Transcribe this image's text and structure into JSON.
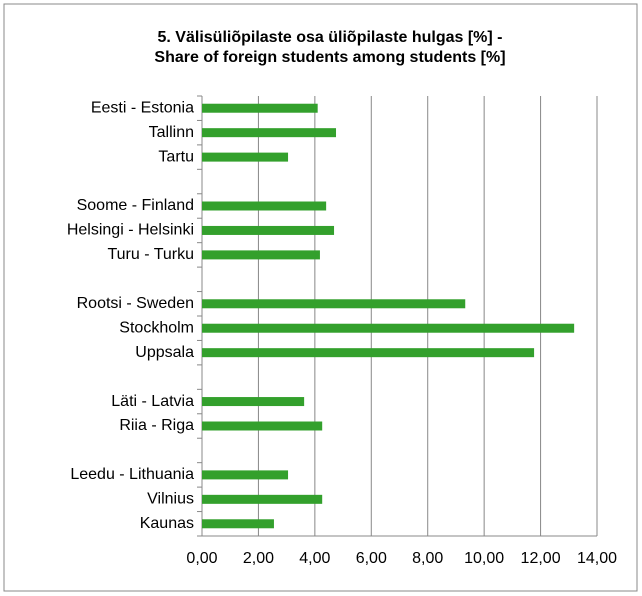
{
  "chart_data": {
    "type": "barh",
    "title_lines": [
      "5. Välisüliõpilaste osa üliõpilaste hulgas [%] -",
      "Share of foreign students among students [%]"
    ],
    "categories": [
      "Eesti - Estonia",
      "Tallinn",
      "Tartu",
      null,
      "Soome - Finland",
      "Helsingi - Helsinki",
      "Turu - Turku",
      null,
      "Rootsi - Sweden",
      "Stockholm",
      "Uppsala",
      null,
      "Läti - Latvia",
      "Riia - Riga",
      null,
      "Leedu - Lithuania",
      "Vilnius",
      "Kaunas"
    ],
    "values": [
      4.1,
      4.75,
      3.05,
      null,
      4.4,
      4.68,
      4.18,
      null,
      9.33,
      13.19,
      11.77,
      null,
      3.62,
      4.26,
      null,
      3.05,
      4.26,
      2.55
    ],
    "color": "#33a02c",
    "xlim": [
      0,
      14
    ],
    "xticks": [
      {
        "value": 0,
        "label": "0,00"
      },
      {
        "value": 2,
        "label": "2,00"
      },
      {
        "value": 4,
        "label": "4,00"
      },
      {
        "value": 6,
        "label": "6,00"
      },
      {
        "value": 8,
        "label": "8,00"
      },
      {
        "value": 10,
        "label": "10,00"
      },
      {
        "value": 12,
        "label": "12,00"
      },
      {
        "value": 14,
        "label": "14,00"
      }
    ],
    "grid": true
  }
}
